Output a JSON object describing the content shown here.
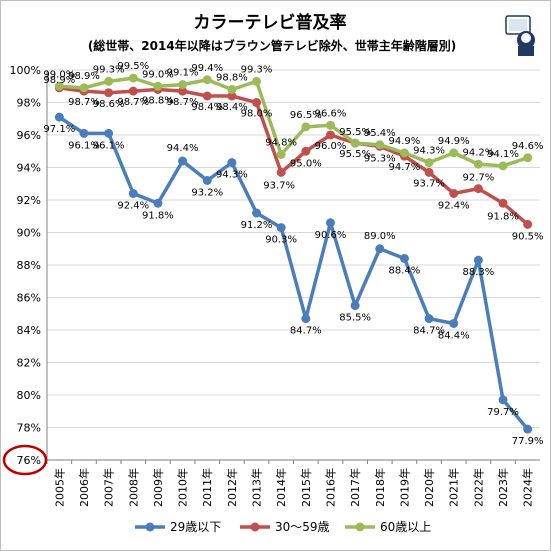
{
  "chart_data": {
    "type": "line",
    "title": "カラーテレビ普及率",
    "subtitle": "(総世帯、2014年以降はブラウン管テレビ除外、世帯主年齢階層別)",
    "categories": [
      "2005年",
      "2006年",
      "2007年",
      "2008年",
      "2009年",
      "2010年",
      "2011年",
      "2012年",
      "2013年",
      "2014年",
      "2015年",
      "2016年",
      "2017年",
      "2018年",
      "2019年",
      "2020年",
      "2021年",
      "2022年",
      "2023年",
      "2024年"
    ],
    "ylim": [
      76,
      100
    ],
    "yticks": [
      "76%",
      "78%",
      "80%",
      "82%",
      "84%",
      "86%",
      "88%",
      "90%",
      "92%",
      "94%",
      "96%",
      "98%",
      "100%"
    ],
    "grid": true,
    "legend_position": "bottom",
    "series": [
      {
        "name": "29歳以下",
        "color": "#4a7ebb",
        "values": [
          97.1,
          96.1,
          96.1,
          92.4,
          91.8,
          94.4,
          93.2,
          94.3,
          91.2,
          90.3,
          84.7,
          90.6,
          85.5,
          89.0,
          88.4,
          84.7,
          84.4,
          88.3,
          79.7,
          77.9
        ],
        "labels": [
          "97.1%",
          "96.1%",
          "96.1%",
          "92.4%",
          "91.8%",
          "94.4%",
          "93.2%",
          "94.3%",
          "91.2%",
          "90.3%",
          "84.7%",
          "90.6%",
          "85.5%",
          "89.0%",
          "88.4%",
          "84.7%",
          "84.4%",
          "88.3%",
          "79.7%",
          "77.9%"
        ]
      },
      {
        "name": "30～59歳",
        "color": "#c0504d",
        "values": [
          98.9,
          98.7,
          98.6,
          98.7,
          98.8,
          98.7,
          98.4,
          98.4,
          98.0,
          93.7,
          95.0,
          96.0,
          95.5,
          95.3,
          94.7,
          93.7,
          92.4,
          92.7,
          91.8,
          90.5
        ],
        "labels": [
          "98.9%",
          "98.7%",
          "98.6%",
          "98.7%",
          "98.8%",
          "98.7%",
          "98.4%",
          "98.4%",
          "98.0%",
          "93.7%",
          "95.0%",
          "96.0%",
          "95.5%",
          "95.3%",
          "94.7%",
          "93.7%",
          "92.4%",
          "92.7%",
          "91.8%",
          "90.5%"
        ]
      },
      {
        "name": "60歳以上",
        "color": "#9bbb59",
        "values": [
          99.0,
          98.9,
          99.3,
          99.5,
          99.0,
          99.1,
          99.4,
          98.8,
          99.3,
          94.8,
          96.5,
          96.6,
          95.5,
          95.4,
          94.9,
          94.3,
          94.9,
          94.2,
          94.1,
          94.6
        ],
        "labels": [
          "99.0%",
          "98.9%",
          "99.3%",
          "99.5%",
          "99.0%",
          "99.1%",
          "99.4%",
          "98.8%",
          "99.3%",
          "94.8%",
          "96.5%",
          "96.6%",
          "95.5%",
          "95.4%",
          "94.9%",
          "94.3%",
          "94.9%",
          "94.2%",
          "94.1%",
          "94.6%"
        ]
      }
    ],
    "annotation": {
      "circled_tick": "76%",
      "circle_color": "#c00000"
    }
  }
}
